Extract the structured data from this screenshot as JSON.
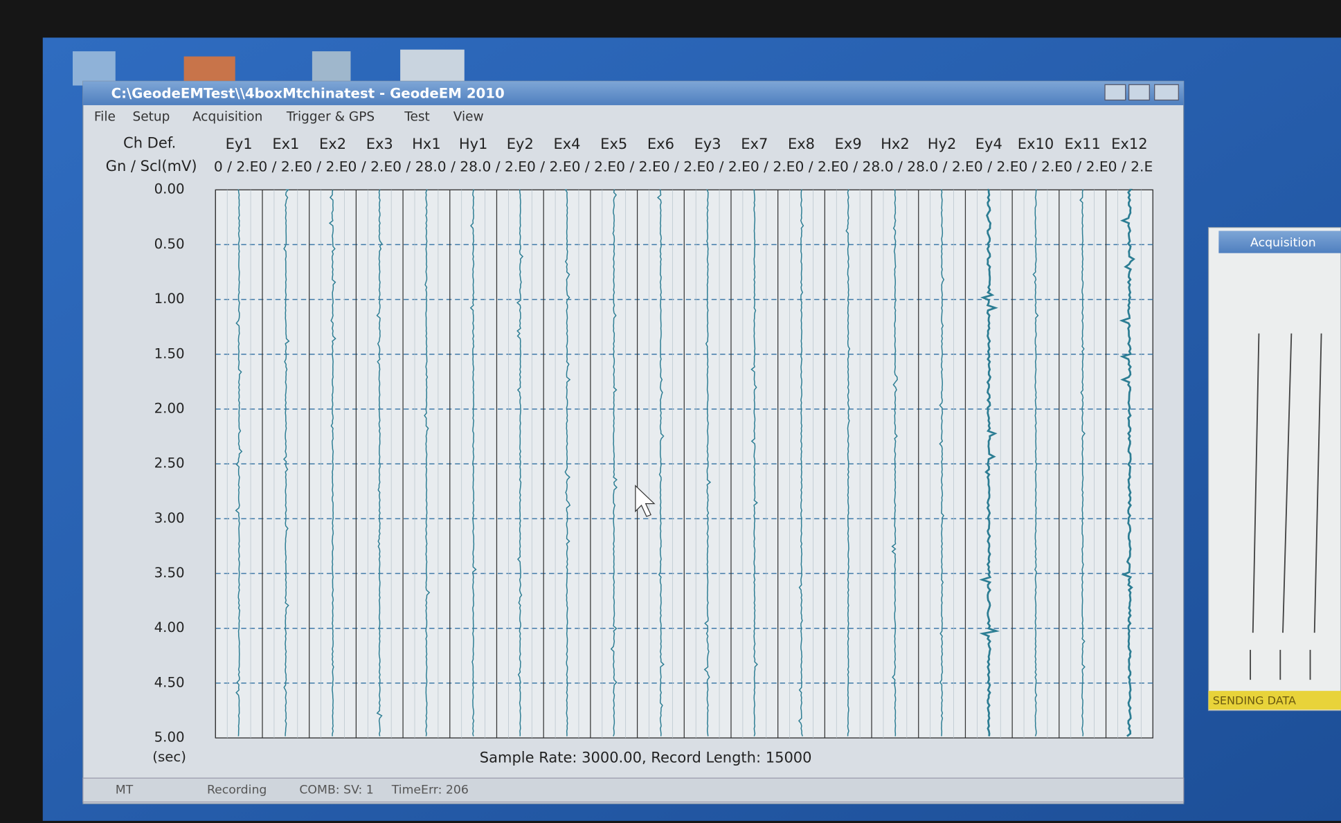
{
  "window": {
    "title": "C:\\GeodeEMTest\\\\4boxMtchinatest - GeodeEM 2010"
  },
  "menu": [
    "File",
    "Setup",
    "Acquisition",
    "Trigger & GPS",
    "Test",
    "View"
  ],
  "plot": {
    "header_label": "Ch Def.",
    "gain_label": "Gn / Scl(mV)",
    "channels": [
      "Ey1",
      "Ex1",
      "Ex2",
      "Ex3",
      "Hx1",
      "Hy1",
      "Ey2",
      "Ex4",
      "Ex5",
      "Ex6",
      "Ey3",
      "Ex7",
      "Ex8",
      "Ex9",
      "Hx2",
      "Hy2",
      "Ey4",
      "Ex10",
      "Ex11",
      "Ex12"
    ],
    "gain_row": "0 / 2.E0 / 2.E0 / 2.E0 / 2.E0 / 28.0 / 28.0 / 2.E0 / 2.E0 / 2.E0 / 2.E0 / 2.E0 / 2.E0 / 2.E0 / 2.E0 / 28.0 / 28.0 / 2.E0 / 2.E0 / 2.E0 / 2.E0 / 2.E",
    "time_labels": [
      "0.00",
      "0.50",
      "1.00",
      "1.50",
      "2.00",
      "2.50",
      "3.00",
      "3.50",
      "4.00",
      "4.50",
      "5.00"
    ],
    "time_unit": "(sec)",
    "footer": "Sample Rate: 3000.00, Record Length: 15000"
  },
  "status_bar": [
    "MT",
    "Recording",
    "COMB: SV: 1",
    "TimeErr: 206"
  ],
  "side_panel": {
    "title": "Acquisition",
    "status": "SENDING DATA"
  }
}
